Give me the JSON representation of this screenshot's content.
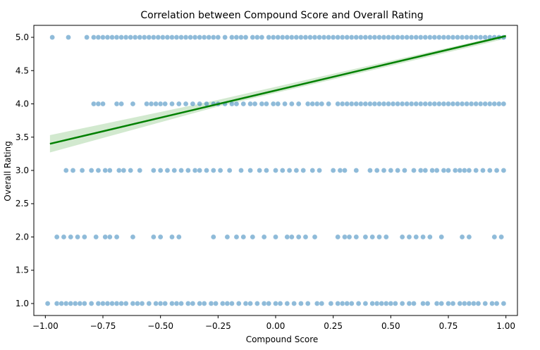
{
  "chart_data": {
    "type": "scatter",
    "title": "Correlation between Compound Score and Overall Rating",
    "xlabel": "Compound Score",
    "ylabel": "Overall Rating",
    "xlim": [
      -1.05,
      1.05
    ],
    "ylim": [
      0.82,
      5.18
    ],
    "xticks": [
      -1.0,
      -0.75,
      -0.5,
      -0.25,
      0.0,
      0.25,
      0.5,
      0.75,
      1.0
    ],
    "xtick_labels": [
      "−1.00",
      "−0.75",
      "−0.50",
      "−0.25",
      "0.00",
      "0.25",
      "0.50",
      "0.75",
      "1.00"
    ],
    "yticks": [
      1.0,
      1.5,
      2.0,
      2.5,
      3.0,
      3.5,
      4.0,
      4.5,
      5.0
    ],
    "ytick_labels": [
      "1.0",
      "1.5",
      "2.0",
      "2.5",
      "3.0",
      "3.5",
      "4.0",
      "4.5",
      "5.0"
    ],
    "grid": false,
    "point_color": "#1f77b4",
    "series": [
      {
        "y": 5.0,
        "x": [
          -0.97,
          -0.9,
          -0.82,
          -0.79,
          -0.77,
          -0.75,
          -0.73,
          -0.71,
          -0.69,
          -0.67,
          -0.65,
          -0.63,
          -0.61,
          -0.59,
          -0.57,
          -0.55,
          -0.53,
          -0.51,
          -0.49,
          -0.47,
          -0.45,
          -0.43,
          -0.41,
          -0.39,
          -0.37,
          -0.35,
          -0.33,
          -0.31,
          -0.29,
          -0.27,
          -0.25,
          -0.22,
          -0.19,
          -0.17,
          -0.15,
          -0.13,
          -0.1,
          -0.08,
          -0.06,
          -0.03,
          -0.01,
          0.01,
          0.03,
          0.05,
          0.07,
          0.09,
          0.11,
          0.13,
          0.15,
          0.17,
          0.19,
          0.21,
          0.23,
          0.25,
          0.27,
          0.29,
          0.31,
          0.33,
          0.35,
          0.37,
          0.39,
          0.41,
          0.43,
          0.45,
          0.47,
          0.49,
          0.51,
          0.53,
          0.55,
          0.57,
          0.59,
          0.61,
          0.63,
          0.65,
          0.67,
          0.69,
          0.71,
          0.73,
          0.75,
          0.77,
          0.79,
          0.81,
          0.83,
          0.85,
          0.87,
          0.89,
          0.91,
          0.93,
          0.95,
          0.97,
          0.99
        ]
      },
      {
        "y": 4.0,
        "x": [
          -0.79,
          -0.77,
          -0.75,
          -0.69,
          -0.67,
          -0.62,
          -0.56,
          -0.54,
          -0.52,
          -0.5,
          -0.48,
          -0.45,
          -0.42,
          -0.39,
          -0.36,
          -0.33,
          -0.3,
          -0.27,
          -0.25,
          -0.22,
          -0.19,
          -0.17,
          -0.14,
          -0.11,
          -0.09,
          -0.06,
          -0.04,
          -0.01,
          0.01,
          0.04,
          0.07,
          0.1,
          0.14,
          0.16,
          0.18,
          0.2,
          0.23,
          0.27,
          0.29,
          0.31,
          0.33,
          0.35,
          0.37,
          0.39,
          0.41,
          0.43,
          0.45,
          0.47,
          0.49,
          0.51,
          0.53,
          0.55,
          0.57,
          0.59,
          0.61,
          0.63,
          0.65,
          0.67,
          0.69,
          0.71,
          0.73,
          0.75,
          0.77,
          0.79,
          0.81,
          0.83,
          0.85,
          0.87,
          0.89,
          0.91,
          0.93,
          0.95,
          0.97,
          0.99
        ]
      },
      {
        "y": 3.0,
        "x": [
          -0.91,
          -0.88,
          -0.84,
          -0.8,
          -0.77,
          -0.74,
          -0.72,
          -0.68,
          -0.66,
          -0.63,
          -0.59,
          -0.53,
          -0.5,
          -0.47,
          -0.44,
          -0.41,
          -0.38,
          -0.35,
          -0.33,
          -0.3,
          -0.27,
          -0.24,
          -0.2,
          -0.15,
          -0.11,
          -0.07,
          -0.04,
          0.0,
          0.03,
          0.06,
          0.09,
          0.12,
          0.16,
          0.19,
          0.25,
          0.28,
          0.3,
          0.35,
          0.41,
          0.44,
          0.47,
          0.5,
          0.53,
          0.56,
          0.6,
          0.63,
          0.65,
          0.68,
          0.7,
          0.73,
          0.75,
          0.78,
          0.8,
          0.82,
          0.84,
          0.87,
          0.9,
          0.93,
          0.96,
          0.99
        ]
      },
      {
        "y": 2.0,
        "x": [
          -0.95,
          -0.92,
          -0.89,
          -0.86,
          -0.83,
          -0.78,
          -0.74,
          -0.72,
          -0.69,
          -0.62,
          -0.53,
          -0.5,
          -0.45,
          -0.42,
          -0.27,
          -0.21,
          -0.17,
          -0.14,
          -0.1,
          -0.05,
          0.0,
          0.05,
          0.07,
          0.1,
          0.13,
          0.17,
          0.27,
          0.3,
          0.32,
          0.35,
          0.39,
          0.42,
          0.45,
          0.48,
          0.55,
          0.58,
          0.61,
          0.64,
          0.67,
          0.72,
          0.81,
          0.84,
          0.95,
          0.98
        ]
      },
      {
        "y": 1.0,
        "x": [
          -0.99,
          -0.95,
          -0.93,
          -0.91,
          -0.89,
          -0.87,
          -0.85,
          -0.83,
          -0.8,
          -0.77,
          -0.75,
          -0.73,
          -0.71,
          -0.69,
          -0.67,
          -0.65,
          -0.62,
          -0.6,
          -0.58,
          -0.55,
          -0.52,
          -0.5,
          -0.48,
          -0.45,
          -0.43,
          -0.41,
          -0.38,
          -0.36,
          -0.33,
          -0.31,
          -0.28,
          -0.26,
          -0.23,
          -0.21,
          -0.19,
          -0.16,
          -0.13,
          -0.11,
          -0.08,
          -0.05,
          -0.03,
          0.0,
          0.02,
          0.05,
          0.08,
          0.11,
          0.14,
          0.18,
          0.2,
          0.24,
          0.27,
          0.29,
          0.31,
          0.33,
          0.36,
          0.39,
          0.42,
          0.44,
          0.46,
          0.48,
          0.5,
          0.52,
          0.55,
          0.58,
          0.6,
          0.64,
          0.66,
          0.7,
          0.72,
          0.75,
          0.77,
          0.8,
          0.82,
          0.84,
          0.86,
          0.88,
          0.91,
          0.94,
          0.96,
          0.99
        ]
      }
    ],
    "regression": {
      "color": "#008000",
      "ci_color": "#c7e3c3",
      "points": [
        [
          -0.98,
          3.4
        ],
        [
          1.0,
          5.02
        ]
      ],
      "ci_upper": [
        [
          -0.98,
          3.53
        ],
        [
          -0.25,
          4.06
        ],
        [
          1.0,
          5.04
        ]
      ],
      "ci_lower": [
        [
          -0.98,
          3.27
        ],
        [
          -0.25,
          3.96
        ],
        [
          1.0,
          4.98
        ]
      ]
    }
  }
}
